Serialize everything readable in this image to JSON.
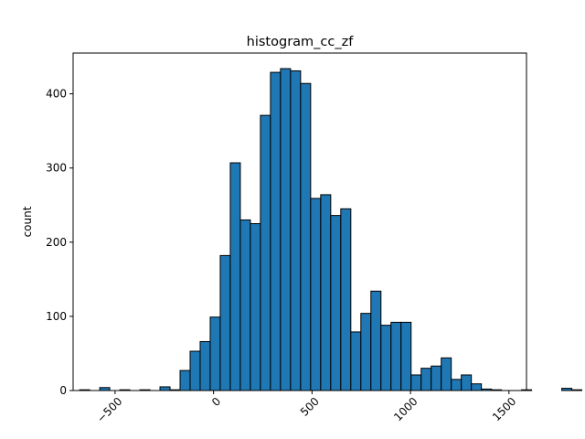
{
  "chart_data": {
    "type": "bar",
    "title": "histogram_cc_zf",
    "xlabel": "",
    "ylabel": "count",
    "xlim": [
      -713,
      1589
    ],
    "ylim": [
      0,
      455
    ],
    "bin_start": -680,
    "bin_width": 51,
    "counts": [
      1,
      0,
      4,
      0,
      1,
      0,
      1,
      0,
      5,
      1,
      27,
      53,
      66,
      99,
      182,
      307,
      230,
      225,
      371,
      429,
      434,
      431,
      414,
      259,
      264,
      236,
      245,
      79,
      104,
      134,
      88,
      92,
      92,
      21,
      30,
      33,
      44,
      15,
      21,
      9,
      2,
      1,
      0,
      0,
      1,
      0,
      0,
      0,
      3,
      1
    ],
    "x_ticks": [
      -500,
      0,
      500,
      1000,
      1500
    ],
    "x_tick_labels": [
      "−500",
      "0",
      "500",
      "1000",
      "1500"
    ],
    "y_ticks": [
      0,
      100,
      200,
      300,
      400
    ],
    "y_tick_labels": [
      "0",
      "100",
      "200",
      "300",
      "400"
    ],
    "grid": false,
    "bar_color": "#1f77b4",
    "edge_color": "#000000"
  }
}
